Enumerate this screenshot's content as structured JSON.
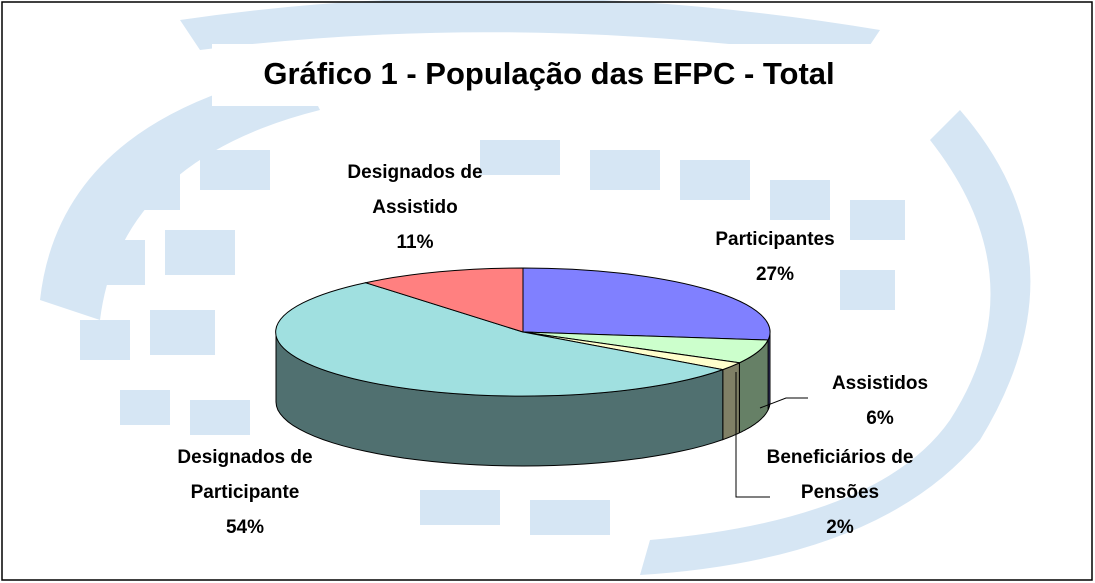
{
  "chart_data": {
    "type": "pie3d",
    "title": "Gráfico 1 - População das EFPC - Total",
    "categories": [
      "Participantes",
      "Assistidos",
      "Beneficiários de Pensões",
      "Designados de Participante",
      "Designados de Assistido"
    ],
    "values": [
      27,
      6,
      2,
      54,
      11
    ],
    "value_labels": [
      "27%",
      "6%",
      "2%",
      "54%",
      "11%"
    ],
    "colors": [
      "#8080ff",
      "#ccffcc",
      "#ffffcc",
      "#a0e0e0",
      "#ff8080"
    ]
  }
}
